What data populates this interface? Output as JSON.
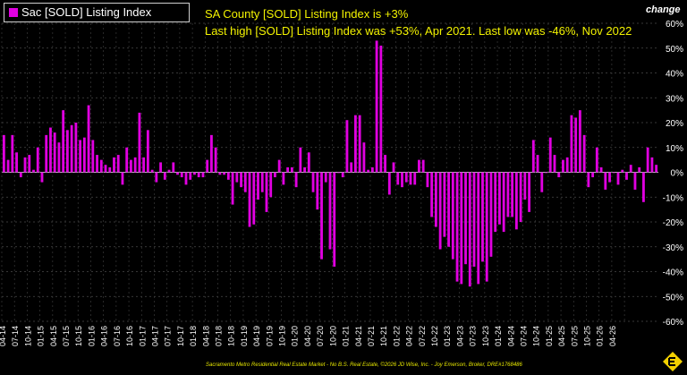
{
  "legend": {
    "label": "Sac [SOLD] Listing Index",
    "color": "#e000e0"
  },
  "headlines": {
    "line1": "SA County [SOLD] Listing Index is +3%",
    "line2": "Last high [SOLD] Listing Index was +53%, Apr 2021. Last low was -46%, Nov 2022"
  },
  "unit_label": "change",
  "footer": "Sacramento Metro Residential Real Estate Market - No B.S. Real Estate, ©2026 JD Wise, Inc. - Joy Emerson, Broker, DRE#1768486",
  "chart_data": {
    "type": "bar",
    "ylim": [
      -60,
      60
    ],
    "y_ticks": [
      60,
      50,
      40,
      30,
      20,
      10,
      0,
      -10,
      -20,
      -30,
      -40,
      -50,
      -60
    ],
    "grid": true,
    "legend_position": "top-left",
    "x_tick_labels": [
      "04-14",
      "07-14",
      "10-14",
      "01-15",
      "04-15",
      "07-15",
      "10-15",
      "01-16",
      "04-16",
      "07-16",
      "10-16",
      "01-17",
      "04-17",
      "07-17",
      "10-17",
      "01-18",
      "04-18",
      "07-18",
      "10-18",
      "01-19",
      "04-19",
      "07-19",
      "10-19",
      "01-20",
      "04-20",
      "07-20",
      "10-20",
      "01-21",
      "04-21",
      "07-21",
      "10-21",
      "01-22",
      "04-22",
      "07-22",
      "10-22",
      "01-23",
      "04-23",
      "07-23",
      "10-23",
      "01-24",
      "04-24",
      "07-24",
      "10-24",
      "01-25",
      "04-25",
      "07-25",
      "10-25",
      "01-26",
      "04-26"
    ],
    "series": [
      {
        "name": "Sac [SOLD] Listing Index",
        "color": "#e000e0",
        "values": [
          15,
          5,
          15,
          8,
          -2,
          6,
          7,
          1,
          10,
          -4,
          15,
          18,
          16,
          12,
          25,
          17,
          19,
          20,
          13,
          14,
          27,
          13,
          7,
          5,
          3,
          2,
          6,
          7,
          -5,
          10,
          5,
          6,
          24,
          6,
          17,
          1,
          -4,
          4,
          -3,
          1,
          4,
          -1,
          -2,
          -5,
          -3,
          -1,
          -2,
          -2,
          5,
          15,
          10,
          -1,
          -1,
          -3,
          -13,
          -4,
          -6,
          -8,
          -22,
          -21,
          -11,
          -8,
          -16,
          -10,
          -2,
          5,
          -5,
          2,
          2,
          -6,
          10,
          2,
          8,
          -8,
          -15,
          -35,
          -4,
          -31,
          -38,
          0,
          -2,
          21,
          4,
          23,
          23,
          12,
          1,
          2,
          53,
          51,
          7,
          -9,
          4,
          -5,
          -6,
          -4,
          -5,
          -5,
          5,
          5,
          -6,
          -18,
          -22,
          -31,
          -26,
          -30,
          -35,
          -44,
          -45,
          -37,
          -46,
          -38,
          -45,
          -36,
          -44,
          -34,
          -24,
          -21,
          -24,
          -18,
          -18,
          -23,
          -20,
          -11,
          -16,
          13,
          7,
          -8,
          0,
          14,
          7,
          -2,
          5,
          6,
          23,
          22,
          25,
          15,
          -6,
          -2,
          10,
          2,
          -7,
          -4,
          0,
          -5,
          1,
          -3,
          3,
          -7,
          2,
          -12,
          10,
          6,
          3
        ]
      }
    ]
  }
}
